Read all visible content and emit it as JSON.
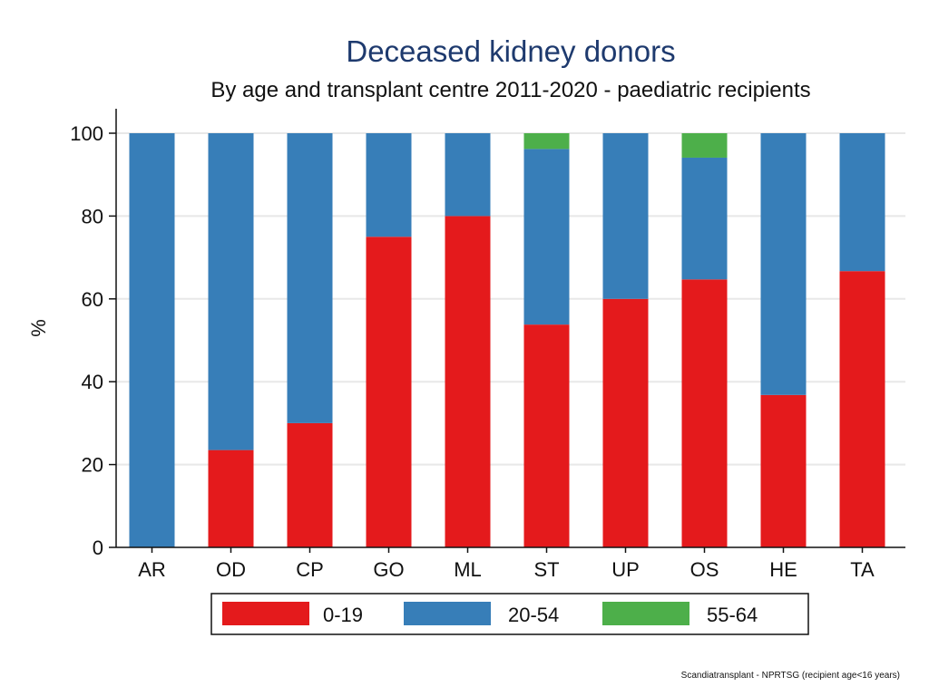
{
  "chart_data": {
    "type": "bar",
    "stacked": true,
    "title": "Deceased kidney donors",
    "subtitle": "By age and transplant centre 2011-2020 - paediatric recipients",
    "xlabel": "",
    "ylabel": "%",
    "ylim": [
      0,
      100
    ],
    "yticks": [
      "0",
      "20",
      "40",
      "60",
      "80",
      "100"
    ],
    "grid": true,
    "legend_position": "bottom",
    "categories": [
      "AR",
      "OD",
      "CP",
      "GO",
      "ML",
      "ST",
      "UP",
      "OS",
      "HE",
      "TA"
    ],
    "series": [
      {
        "name": "0-19",
        "color": "#e41a1c",
        "values": [
          0,
          23.5,
          30,
          75,
          80,
          53.8,
          60,
          64.7,
          36.8,
          66.7
        ]
      },
      {
        "name": "20-54",
        "color": "#377eb8",
        "values": [
          100,
          76.5,
          70,
          25,
          20,
          42.4,
          40,
          29.4,
          63.2,
          33.3
        ]
      },
      {
        "name": "55-64",
        "color": "#4daf4a",
        "values": [
          0,
          0,
          0,
          0,
          0,
          3.8,
          0,
          5.9,
          0,
          0
        ]
      }
    ],
    "source_note": "Scandiatransplant - NPRTSG (recipient age<16 years)"
  }
}
